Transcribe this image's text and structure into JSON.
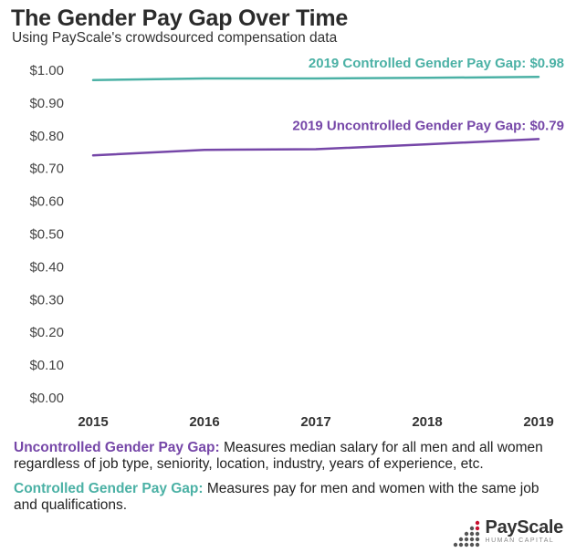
{
  "title": "The Gender Pay Gap Over Time",
  "subtitle": "Using PayScale's crowdsourced compensation data",
  "colors": {
    "controlled": "#4bb1a5",
    "uncontrolled": "#7647a8",
    "logo_red": "#c8102e",
    "logo_gray": "#555555"
  },
  "chart_data": {
    "type": "line",
    "title": "",
    "xlabel": "",
    "ylabel": "",
    "x": [
      "2015",
      "2016",
      "2017",
      "2018",
      "2019"
    ],
    "ylim": [
      0,
      1.0
    ],
    "y_ticks": [
      "$0.00",
      "$0.10",
      "$0.20",
      "$0.30",
      "$0.40",
      "$0.50",
      "$0.60",
      "$0.70",
      "$0.80",
      "$0.90",
      "$1.00"
    ],
    "grid": false,
    "series": [
      {
        "name": "Controlled Gender Pay Gap",
        "values": [
          0.97,
          0.975,
          0.975,
          0.977,
          0.98
        ],
        "label": "2019 Controlled Gender Pay Gap: $0.98"
      },
      {
        "name": "Uncontrolled Gender Pay Gap",
        "values": [
          0.74,
          0.757,
          0.759,
          0.774,
          0.79
        ],
        "label": "2019 Uncontrolled Gender Pay Gap: $0.79"
      }
    ]
  },
  "legend": {
    "uncontrolled_term": "Uncontrolled Gender Pay Gap:",
    "uncontrolled_desc": " Measures median salary for all men and all women regardless of job type, seniority, location, industry, years of experience, etc.",
    "controlled_term": "Controlled Gender Pay Gap:",
    "controlled_desc": " Measures pay for men and women with the same job and qualifications."
  },
  "logo": {
    "name": "PayScale",
    "tagline": "HUMAN CAPITAL"
  }
}
